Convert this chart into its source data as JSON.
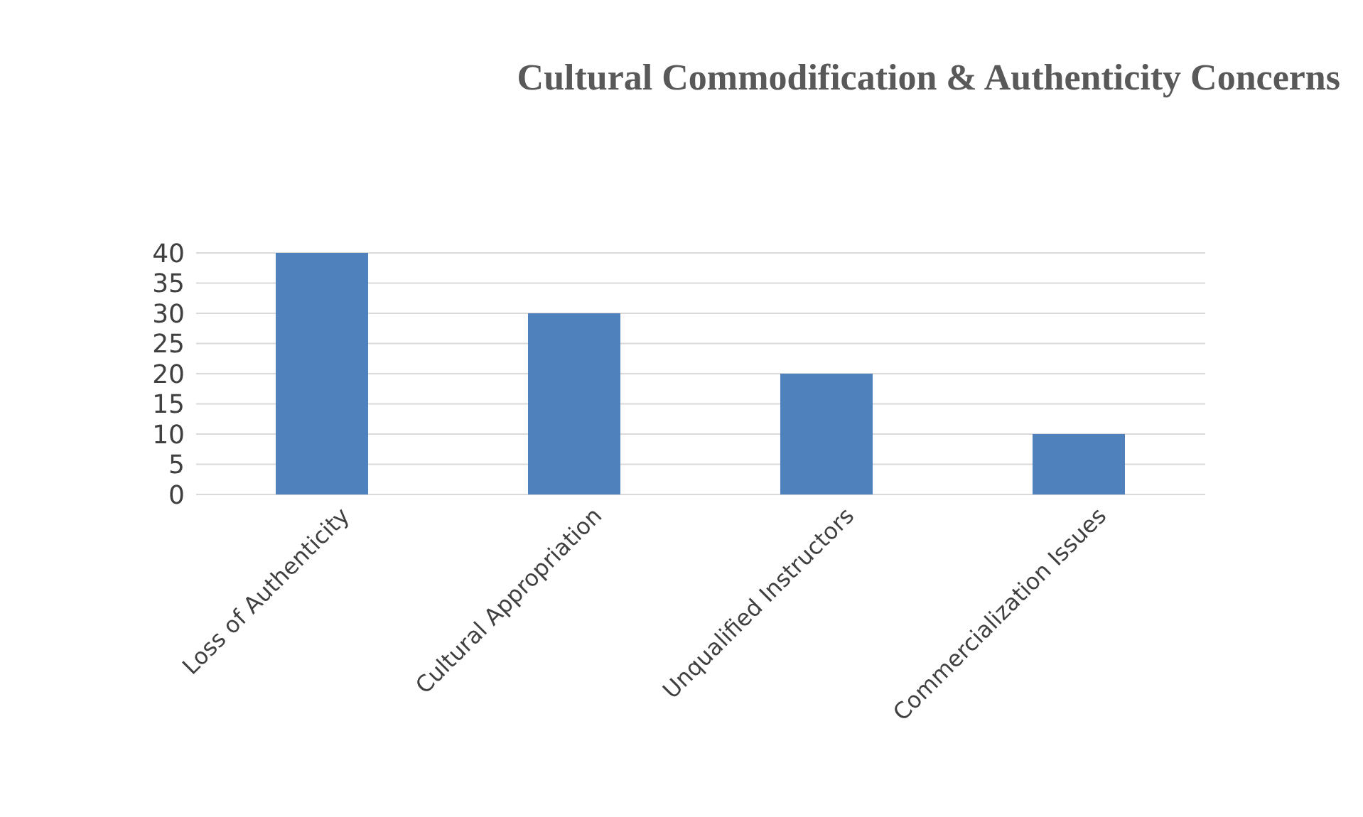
{
  "chart_data": {
    "type": "bar",
    "title": "Cultural Commodification & Authenticity Concerns",
    "categories": [
      "Loss of Authenticity",
      "Cultural Appropriation",
      "Unqualified Instructors",
      "Commercialization Issues"
    ],
    "values": [
      40,
      30,
      20,
      10
    ],
    "color": "#4f81bd",
    "ylim": [
      0,
      40
    ],
    "yticks": [
      0,
      5,
      10,
      15,
      20,
      25,
      30,
      35,
      40
    ],
    "grid": "y"
  }
}
